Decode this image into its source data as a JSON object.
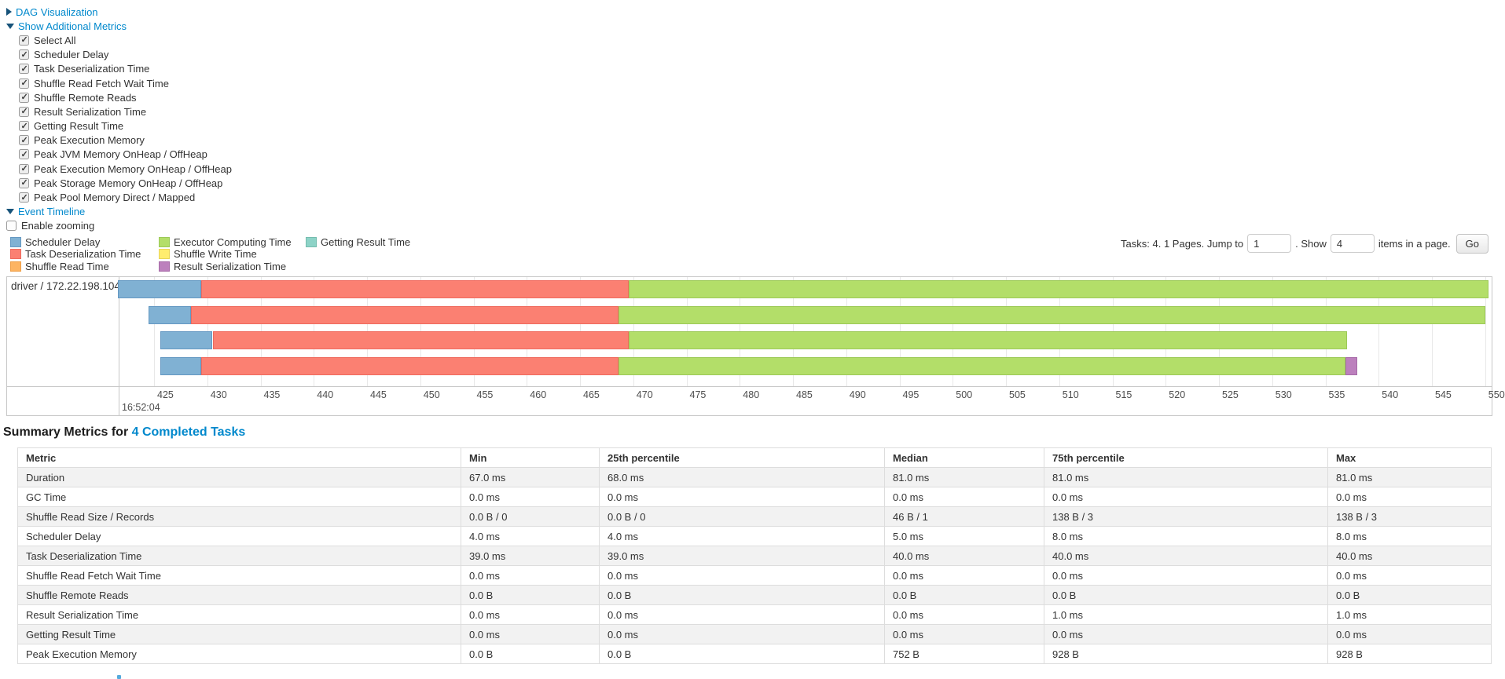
{
  "toggles": {
    "dag_label": "DAG Visualization",
    "metrics_label": "Show Additional Metrics",
    "timeline_label": "Event Timeline",
    "enable_zooming_label": "Enable zooming",
    "enable_zooming_checked": false
  },
  "metric_checkboxes": [
    {
      "label": "Select All",
      "checked": true
    },
    {
      "label": "Scheduler Delay",
      "checked": true
    },
    {
      "label": "Task Deserialization Time",
      "checked": true
    },
    {
      "label": "Shuffle Read Fetch Wait Time",
      "checked": true
    },
    {
      "label": "Shuffle Remote Reads",
      "checked": true
    },
    {
      "label": "Result Serialization Time",
      "checked": true
    },
    {
      "label": "Getting Result Time",
      "checked": true
    },
    {
      "label": "Peak Execution Memory",
      "checked": true
    },
    {
      "label": "Peak JVM Memory OnHeap / OffHeap",
      "checked": true
    },
    {
      "label": "Peak Execution Memory OnHeap / OffHeap",
      "checked": true
    },
    {
      "label": "Peak Storage Memory OnHeap / OffHeap",
      "checked": true
    },
    {
      "label": "Peak Pool Memory Direct / Mapped",
      "checked": true
    }
  ],
  "colors": {
    "scheduler-delay": {
      "fill": "#80B1D3",
      "border": "#6498c2"
    },
    "task-deserialization": {
      "fill": "#FB8072",
      "border": "#ef6a5e"
    },
    "shuffle-read": {
      "fill": "#FDB462",
      "border": "#ef9f47"
    },
    "executor-computing": {
      "fill": "#B3DE69",
      "border": "#9cc957"
    },
    "shuffle-write": {
      "fill": "#FFED6F",
      "border": "#e8d558"
    },
    "result-serialization": {
      "fill": "#BC80BD",
      "border": "#a76ba8"
    },
    "getting-result": {
      "fill": "#8DD3C7",
      "border": "#74bcae"
    }
  },
  "legend_columns": [
    [
      {
        "key": "scheduler-delay",
        "label": "Scheduler Delay"
      },
      {
        "key": "task-deserialization",
        "label": "Task Deserialization Time"
      },
      {
        "key": "shuffle-read",
        "label": "Shuffle Read Time"
      }
    ],
    [
      {
        "key": "executor-computing",
        "label": "Executor Computing Time"
      },
      {
        "key": "shuffle-write",
        "label": "Shuffle Write Time"
      },
      {
        "key": "result-serialization",
        "label": "Result Serialization Time"
      }
    ],
    [
      {
        "key": "getting-result",
        "label": "Getting Result Time"
      }
    ]
  ],
  "pager": {
    "prefix_text": "Tasks: 4. 1 Pages. Jump to",
    "jump_value": "1",
    "mid_text": ". Show",
    "show_value": "4",
    "suffix_text": "items in a page.",
    "go_label": "Go"
  },
  "chart_data": {
    "type": "bar",
    "subtype": "horizontal-stacked-task-timeline",
    "group_label": "driver / 172.22.198.104",
    "x_axis": {
      "start": 425,
      "end": 550,
      "tick_step": 5,
      "tick_labels": [
        "425",
        "430",
        "435",
        "440",
        "445",
        "450",
        "455",
        "460",
        "465",
        "470",
        "475",
        "480",
        "485",
        "490",
        "495",
        "500",
        "505",
        "510",
        "515",
        "520",
        "525",
        "530",
        "535",
        "540",
        "545",
        "550"
      ],
      "major_label": "16:52:04",
      "window": [
        421.6,
        551.0
      ],
      "grid": true,
      "legend_position": "top-left"
    },
    "tasks": [
      {
        "start": 421.6,
        "segments": [
          {
            "metric": "scheduler-delay",
            "end": 429.4
          },
          {
            "metric": "task-deserialization",
            "end": 469.6
          },
          {
            "metric": "executor-computing",
            "end": 550.3
          }
        ]
      },
      {
        "start": 424.5,
        "segments": [
          {
            "metric": "scheduler-delay",
            "end": 428.5
          },
          {
            "metric": "task-deserialization",
            "end": 468.6
          },
          {
            "metric": "executor-computing",
            "end": 550.0
          }
        ]
      },
      {
        "start": 425.6,
        "segments": [
          {
            "metric": "scheduler-delay",
            "end": 430.5
          },
          {
            "metric": "task-deserialization",
            "end": 469.6
          },
          {
            "metric": "executor-computing",
            "end": 537.0
          }
        ]
      },
      {
        "start": 425.6,
        "segments": [
          {
            "metric": "scheduler-delay",
            "end": 429.4
          },
          {
            "metric": "task-deserialization",
            "end": 468.6
          },
          {
            "metric": "executor-computing",
            "end": 536.9
          },
          {
            "metric": "result-serialization",
            "end": 538.0
          }
        ]
      }
    ]
  },
  "summary": {
    "heading_prefix": "Summary Metrics for ",
    "heading_link": "4 Completed Tasks",
    "headers": [
      "Metric",
      "Min",
      "25th percentile",
      "Median",
      "75th percentile",
      "Max"
    ],
    "rows": [
      [
        "Duration",
        "67.0 ms",
        "68.0 ms",
        "81.0 ms",
        "81.0 ms",
        "81.0 ms"
      ],
      [
        "GC Time",
        "0.0 ms",
        "0.0 ms",
        "0.0 ms",
        "0.0 ms",
        "0.0 ms"
      ],
      [
        "Shuffle Read Size / Records",
        "0.0 B / 0",
        "0.0 B / 0",
        "46 B / 1",
        "138 B / 3",
        "138 B / 3"
      ],
      [
        "Scheduler Delay",
        "4.0 ms",
        "4.0 ms",
        "5.0 ms",
        "8.0 ms",
        "8.0 ms"
      ],
      [
        "Task Deserialization Time",
        "39.0 ms",
        "39.0 ms",
        "40.0 ms",
        "40.0 ms",
        "40.0 ms"
      ],
      [
        "Shuffle Read Fetch Wait Time",
        "0.0 ms",
        "0.0 ms",
        "0.0 ms",
        "0.0 ms",
        "0.0 ms"
      ],
      [
        "Shuffle Remote Reads",
        "0.0 B",
        "0.0 B",
        "0.0 B",
        "0.0 B",
        "0.0 B"
      ],
      [
        "Result Serialization Time",
        "0.0 ms",
        "0.0 ms",
        "0.0 ms",
        "1.0 ms",
        "1.0 ms"
      ],
      [
        "Getting Result Time",
        "0.0 ms",
        "0.0 ms",
        "0.0 ms",
        "0.0 ms",
        "0.0 ms"
      ],
      [
        "Peak Execution Memory",
        "0.0 B",
        "0.0 B",
        "752 B",
        "928 B",
        "928 B"
      ]
    ]
  }
}
